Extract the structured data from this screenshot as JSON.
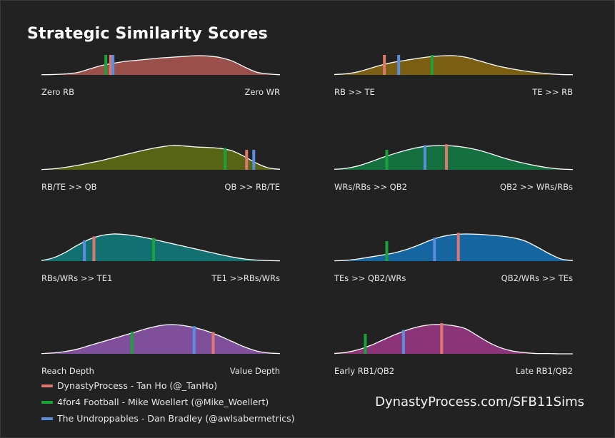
{
  "title": "Strategic Similarity Scores",
  "source_text": "DynastyProcess.com/SFB11Sims",
  "colors": {
    "background": "#222222",
    "series_dynastyprocess": "#e0776e",
    "series_4for4": "#1aa33a",
    "series_undroppables": "#5a8ee0"
  },
  "legend": [
    {
      "name": "DynastyProcess - Tan Ho (@_TanHo)",
      "color": "#e0776e"
    },
    {
      "name": "4for4 Football - Mike Woellert (@Mike_Woellert)",
      "color": "#1aa33a"
    },
    {
      "name": "The Undroppables - Dan Bradley (@awlsabermetrics)",
      "color": "#5a8ee0"
    }
  ],
  "chart_data": [
    {
      "type": "area",
      "left_label": "Zero RB",
      "right_label": "Zero WR",
      "fill": "#9b4f4b",
      "density": [
        0.01,
        0.02,
        0.05,
        0.12,
        0.3,
        0.48,
        0.6,
        0.7,
        0.76,
        0.82,
        0.88,
        0.92,
        0.96,
        1.0,
        0.98,
        0.9,
        0.72,
        0.42,
        0.15,
        0.05,
        0.01
      ],
      "markers": [
        {
          "series": "DynastyProcess - Tan Ho (@_TanHo)",
          "x": 0.29
        },
        {
          "series": "4for4 Football - Mike Woellert (@Mike_Woellert)",
          "x": 0.27
        },
        {
          "series": "The Undroppables - Dan Bradley (@awlsabermetrics)",
          "x": 0.3
        }
      ]
    },
    {
      "type": "area",
      "left_label": "RB >> TE",
      "right_label": "TE >> RB",
      "fill": "#7a5e12",
      "density": [
        0.02,
        0.06,
        0.16,
        0.34,
        0.52,
        0.66,
        0.76,
        0.86,
        0.94,
        0.99,
        1.0,
        0.92,
        0.76,
        0.58,
        0.42,
        0.3,
        0.2,
        0.12,
        0.06,
        0.02,
        0.01
      ],
      "markers": [
        {
          "series": "DynastyProcess - Tan Ho (@_TanHo)",
          "x": 0.21
        },
        {
          "series": "4for4 Football - Mike Woellert (@Mike_Woellert)",
          "x": 0.41
        },
        {
          "series": "The Undroppables - Dan Bradley (@awlsabermetrics)",
          "x": 0.27
        }
      ]
    },
    {
      "type": "area",
      "left_label": "RB/TE >> QB",
      "right_label": "QB >> RB/TE",
      "fill": "#566413",
      "density": [
        0.01,
        0.04,
        0.1,
        0.18,
        0.28,
        0.38,
        0.5,
        0.62,
        0.74,
        0.85,
        0.94,
        1.0,
        0.98,
        0.94,
        0.92,
        0.88,
        0.78,
        0.55,
        0.28,
        0.08,
        0.02
      ],
      "markers": [
        {
          "series": "DynastyProcess - Tan Ho (@_TanHo)",
          "x": 0.86
        },
        {
          "series": "4for4 Football - Mike Woellert (@Mike_Woellert)",
          "x": 0.77
        },
        {
          "series": "The Undroppables - Dan Bradley (@awlsabermetrics)",
          "x": 0.89
        }
      ]
    },
    {
      "type": "area",
      "left_label": "WRs/RBs >> QB2",
      "right_label": "QB2 >> WRs/RBs",
      "fill": "#157040",
      "density": [
        0.02,
        0.06,
        0.16,
        0.32,
        0.5,
        0.66,
        0.8,
        0.92,
        0.98,
        1.0,
        0.98,
        0.92,
        0.82,
        0.68,
        0.52,
        0.38,
        0.26,
        0.16,
        0.08,
        0.03,
        0.01
      ],
      "markers": [
        {
          "series": "DynastyProcess - Tan Ho (@_TanHo)",
          "x": 0.47
        },
        {
          "series": "4for4 Football - Mike Woellert (@Mike_Woellert)",
          "x": 0.22
        },
        {
          "series": "The Undroppables - Dan Bradley (@awlsabermetrics)",
          "x": 0.38
        }
      ]
    },
    {
      "type": "area",
      "left_label": "RBs/WRs >> TE1",
      "right_label": "TE1 >>RBs/WRs",
      "fill": "#137070",
      "density": [
        0.02,
        0.12,
        0.32,
        0.58,
        0.8,
        0.94,
        1.0,
        0.98,
        0.92,
        0.84,
        0.74,
        0.64,
        0.54,
        0.44,
        0.34,
        0.24,
        0.15,
        0.08,
        0.04,
        0.02,
        0.01
      ],
      "markers": [
        {
          "series": "DynastyProcess - Tan Ho (@_TanHo)",
          "x": 0.22
        },
        {
          "series": "4for4 Football - Mike Woellert (@Mike_Woellert)",
          "x": 0.47
        },
        {
          "series": "The Undroppables - Dan Bradley (@awlsabermetrics)",
          "x": 0.18
        }
      ]
    },
    {
      "type": "area",
      "left_label": "TEs >> QB2/WRs",
      "right_label": "QB2/WRs >> TEs",
      "fill": "#1566a0",
      "density": [
        0.01,
        0.03,
        0.08,
        0.15,
        0.22,
        0.3,
        0.42,
        0.58,
        0.76,
        0.9,
        0.98,
        1.0,
        0.99,
        0.96,
        0.92,
        0.86,
        0.74,
        0.52,
        0.28,
        0.08,
        0.02
      ],
      "markers": [
        {
          "series": "DynastyProcess - Tan Ho (@_TanHo)",
          "x": 0.52
        },
        {
          "series": "4for4 Football - Mike Woellert (@Mike_Woellert)",
          "x": 0.22
        },
        {
          "series": "The Undroppables - Dan Bradley (@awlsabermetrics)",
          "x": 0.42
        }
      ]
    },
    {
      "type": "area",
      "left_label": "Reach Depth",
      "right_label": "Value Depth",
      "fill": "#7f4f9c",
      "density": [
        0.01,
        0.03,
        0.08,
        0.16,
        0.28,
        0.4,
        0.52,
        0.64,
        0.76,
        0.88,
        0.97,
        1.0,
        0.96,
        0.88,
        0.76,
        0.6,
        0.42,
        0.24,
        0.1,
        0.03,
        0.01
      ],
      "markers": [
        {
          "series": "DynastyProcess - Tan Ho (@_TanHo)",
          "x": 0.72
        },
        {
          "series": "4for4 Football - Mike Woellert (@Mike_Woellert)",
          "x": 0.38
        },
        {
          "series": "The Undroppables - Dan Bradley (@awlsabermetrics)",
          "x": 0.64
        }
      ]
    },
    {
      "type": "area",
      "left_label": "Early RB1/QB2",
      "right_label": "Late RB1/QB2",
      "fill": "#8c3478",
      "density": [
        0.01,
        0.05,
        0.14,
        0.28,
        0.46,
        0.64,
        0.8,
        0.92,
        0.99,
        1.0,
        0.96,
        0.86,
        0.62,
        0.38,
        0.2,
        0.09,
        0.04,
        0.01,
        0.01,
        0.0,
        0.0
      ],
      "markers": [
        {
          "series": "DynastyProcess - Tan Ho (@_TanHo)",
          "x": 0.45
        },
        {
          "series": "4for4 Football - Mike Woellert (@Mike_Woellert)",
          "x": 0.13
        },
        {
          "series": "The Undroppables - Dan Bradley (@awlsabermetrics)",
          "x": 0.29
        }
      ]
    }
  ]
}
